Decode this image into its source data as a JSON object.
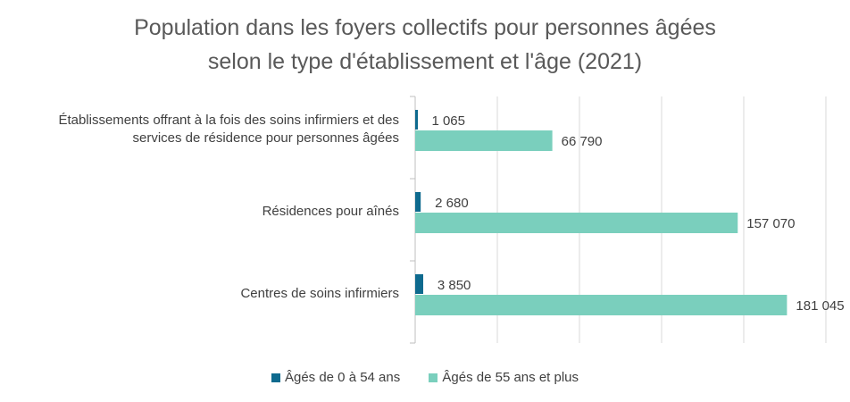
{
  "chart_data": {
    "type": "bar",
    "orientation": "horizontal",
    "title_lines": [
      "Population dans les foyers collectifs pour personnes âgées",
      "selon le type d'établissement et l'âge (2021)"
    ],
    "categories": [
      [
        "Établissements offrant à la fois des soins infirmiers et des",
        "services de résidence pour personnes âgées"
      ],
      [
        "Résidences pour aînés"
      ],
      [
        "Centres de soins infirmiers"
      ]
    ],
    "series": [
      {
        "name": "Âgés de 0 à 54 ans",
        "color": "#0e6a8e",
        "values": [
          1065,
          2680,
          3850
        ],
        "labels": [
          "1 065",
          "2 680",
          "3 850"
        ]
      },
      {
        "name": "Âgés de 55 ans et plus",
        "color": "#7acfbd",
        "values": [
          66790,
          157070,
          181045
        ],
        "labels": [
          "66 790",
          "157 070",
          "181 045"
        ]
      }
    ],
    "xlim": [
      0,
      200000
    ],
    "x_gridlines": [
      0,
      40000,
      80000,
      120000,
      160000,
      200000
    ],
    "grid": true,
    "legend_position": "bottom",
    "xlabel": "",
    "ylabel": ""
  }
}
